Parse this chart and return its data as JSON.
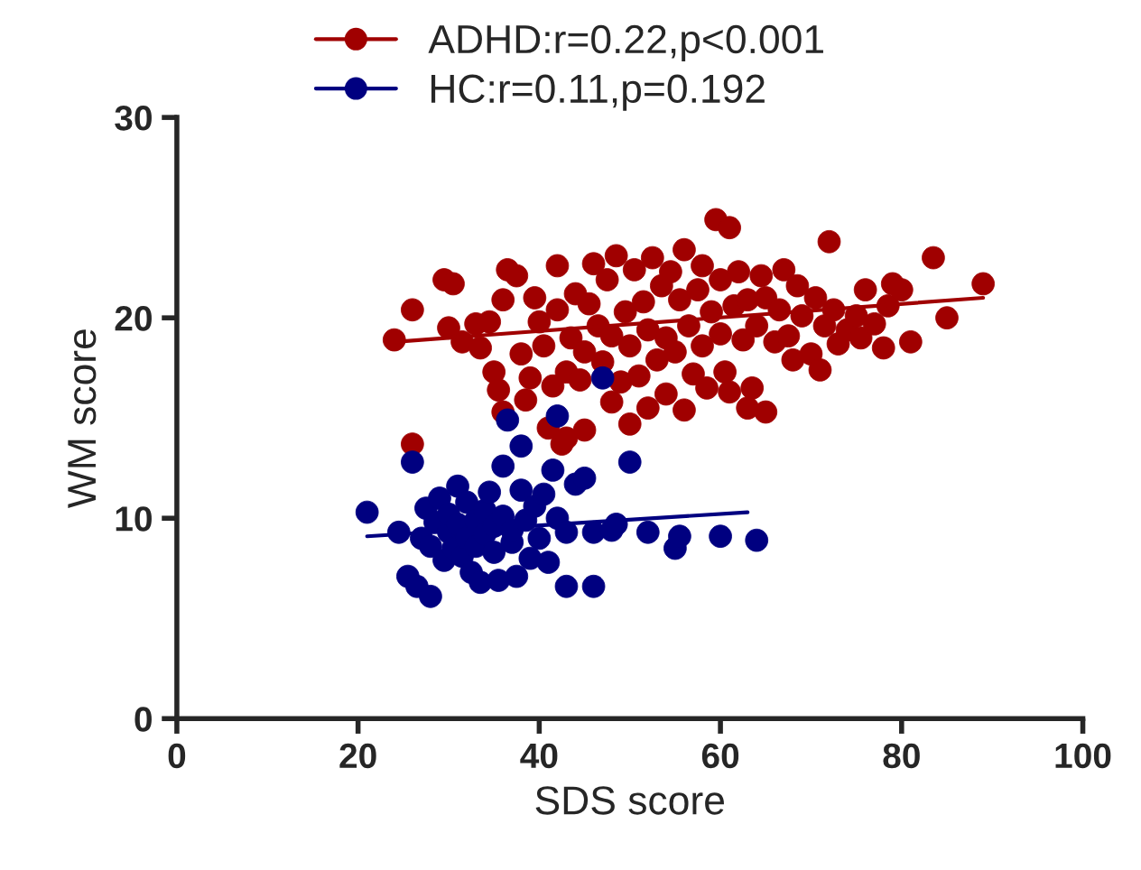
{
  "chart_data": {
    "type": "scatter",
    "xlabel": "SDS score",
    "ylabel": "WM score",
    "xlim": [
      0,
      100
    ],
    "ylim": [
      0,
      30
    ],
    "xticks": [
      0,
      20,
      40,
      60,
      80,
      100
    ],
    "yticks": [
      0,
      10,
      20,
      30
    ],
    "grid": false,
    "legend": "top",
    "marker": "circle",
    "series": [
      {
        "name": "ADHD:r=0.22,p<0.001",
        "color": "#a00000",
        "x": [
          24,
          26,
          26,
          29.5,
          30.5,
          30,
          31.5,
          33,
          33.5,
          34.5,
          35,
          35.5,
          36,
          36,
          36.5,
          37.5,
          38,
          38.5,
          39,
          39.5,
          40,
          40.5,
          41,
          41.5,
          42,
          42,
          42.5,
          43,
          43,
          43.5,
          44,
          44.5,
          45,
          45,
          45.5,
          46,
          46.5,
          47,
          47.5,
          48,
          48,
          48.5,
          49,
          49.5,
          50,
          50,
          50.5,
          51,
          51.5,
          52,
          52,
          52.5,
          53,
          53.5,
          54,
          54,
          54.5,
          55,
          55.5,
          56,
          56,
          56.5,
          57,
          57.5,
          58,
          58,
          58.5,
          59,
          59.5,
          60,
          60,
          60.5,
          61,
          61,
          61.5,
          62,
          62.5,
          63,
          63,
          63.5,
          64,
          64.5,
          65,
          65,
          66,
          66.5,
          67,
          67.5,
          68,
          68.5,
          69,
          70,
          70.5,
          71,
          71.5,
          72,
          72.5,
          73,
          74,
          75,
          75.5,
          76,
          77,
          78,
          78.5,
          79,
          80,
          81,
          83.5,
          85,
          89
        ],
        "values": [
          18.9,
          13.7,
          20.4,
          21.9,
          21.7,
          19.5,
          18.8,
          19.7,
          18.5,
          19.8,
          17.3,
          16.4,
          15.3,
          20.9,
          22.4,
          22.1,
          18.2,
          15.9,
          17.0,
          21.0,
          19.8,
          18.6,
          14.5,
          16.6,
          20.4,
          22.6,
          13.7,
          14.0,
          17.3,
          19.0,
          21.2,
          16.9,
          14.4,
          18.3,
          20.7,
          22.7,
          19.6,
          17.8,
          21.9,
          15.8,
          19.1,
          23.1,
          16.8,
          20.3,
          14.7,
          18.6,
          22.4,
          17.1,
          20.8,
          15.5,
          19.4,
          23.0,
          17.9,
          21.6,
          16.2,
          19.0,
          22.3,
          18.3,
          20.9,
          15.4,
          23.4,
          19.6,
          17.2,
          21.4,
          22.6,
          18.6,
          16.5,
          20.3,
          24.9,
          19.2,
          21.9,
          17.3,
          24.5,
          16.3,
          20.6,
          22.3,
          18.9,
          15.5,
          20.9,
          16.5,
          19.6,
          22.1,
          15.3,
          21.0,
          18.8,
          20.4,
          22.4,
          19.1,
          17.9,
          21.6,
          20.1,
          18.2,
          21.0,
          17.4,
          19.6,
          23.8,
          20.4,
          18.7,
          19.4,
          20.1,
          19.0,
          21.4,
          19.7,
          18.5,
          20.6,
          21.7,
          21.4,
          18.8,
          23.0,
          20.0,
          21.7
        ]
      },
      {
        "name": "HC:r=0.11,p=0.192",
        "color": "#000080",
        "x": [
          21,
          24.5,
          25.5,
          26,
          26.5,
          27,
          27.5,
          28,
          28,
          28.5,
          29,
          29.5,
          30,
          30,
          30.5,
          31,
          31,
          31.5,
          32,
          32,
          32.5,
          33,
          33,
          33.5,
          34,
          34,
          34.5,
          35,
          35,
          35.5,
          36,
          36,
          36.5,
          37,
          37,
          37.5,
          38,
          38,
          38.5,
          39,
          39.5,
          40,
          40.5,
          41,
          41.5,
          42,
          42,
          43,
          43,
          44,
          45,
          46,
          46,
          47,
          48,
          48.5,
          50,
          52,
          55,
          55.5,
          60,
          64
        ],
        "values": [
          10.3,
          9.3,
          7.1,
          12.8,
          6.6,
          9.0,
          10.5,
          6.1,
          8.6,
          9.8,
          11.0,
          7.9,
          9.3,
          10.2,
          8.5,
          11.6,
          9.7,
          8.1,
          10.8,
          9.0,
          7.3,
          9.9,
          8.6,
          6.8,
          10.4,
          9.2,
          11.3,
          8.3,
          9.6,
          6.9,
          12.6,
          10.1,
          14.9,
          8.8,
          9.4,
          7.1,
          11.4,
          13.6,
          9.9,
          8.0,
          10.6,
          9.0,
          11.2,
          7.8,
          12.4,
          15.1,
          10.0,
          9.3,
          6.6,
          11.7,
          12.0,
          6.6,
          9.3,
          17.0,
          9.4,
          9.7,
          12.8,
          9.3,
          8.5,
          9.1,
          9.1,
          8.9
        ]
      },
      {
        "type": "line",
        "marker": "none",
        "color": "#a00000",
        "x": [
          24,
          89
        ],
        "values": [
          18.8,
          21.0
        ]
      },
      {
        "type": "line",
        "marker": "none",
        "color": "#000080",
        "x": [
          21,
          63
        ],
        "values": [
          9.1,
          10.3
        ]
      }
    ]
  }
}
